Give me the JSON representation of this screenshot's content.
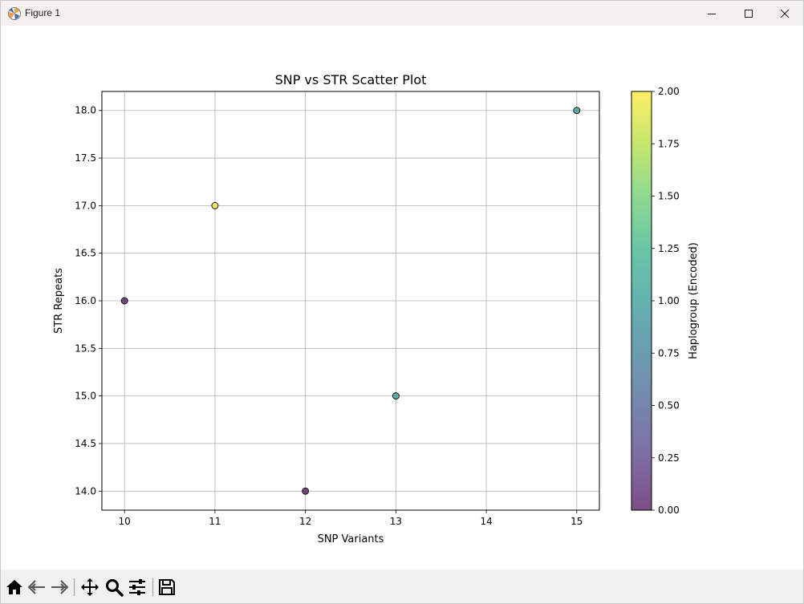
{
  "window": {
    "title": "Figure 1",
    "controls": {
      "minimize_icon": "minimize-icon",
      "maximize_icon": "maximize-icon",
      "close_icon": "close-icon"
    }
  },
  "toolbar": {
    "tools": [
      {
        "name": "home-button",
        "icon": "home-icon"
      },
      {
        "name": "back-button",
        "icon": "back-arrow-icon"
      },
      {
        "name": "forward-button",
        "icon": "forward-arrow-icon"
      },
      {
        "name": "pan-button",
        "icon": "move-icon"
      },
      {
        "name": "zoom-button",
        "icon": "zoom-icon"
      },
      {
        "name": "configure-subplots-button",
        "icon": "sliders-icon"
      },
      {
        "name": "save-button",
        "icon": "save-icon"
      }
    ]
  },
  "chart_data": {
    "type": "scatter",
    "title": "SNP vs STR Scatter Plot",
    "xlabel": "SNP Variants",
    "ylabel": "STR Repeats",
    "xlim": [
      9.75,
      15.25
    ],
    "ylim": [
      13.8,
      18.2
    ],
    "xticks": [
      10,
      11,
      12,
      13,
      14,
      15
    ],
    "xtick_labels": [
      "10",
      "11",
      "12",
      "13",
      "14",
      "15"
    ],
    "yticks": [
      14.0,
      14.5,
      15.0,
      15.5,
      16.0,
      16.5,
      17.0,
      17.5,
      18.0
    ],
    "ytick_labels": [
      "14.0",
      "14.5",
      "15.0",
      "15.5",
      "16.0",
      "16.5",
      "17.0",
      "17.5",
      "18.0"
    ],
    "grid": true,
    "points": [
      {
        "x": 10,
        "y": 16,
        "c": 0
      },
      {
        "x": 11,
        "y": 17,
        "c": 2
      },
      {
        "x": 12,
        "y": 14,
        "c": 0
      },
      {
        "x": 13,
        "y": 15,
        "c": 1
      },
      {
        "x": 15,
        "y": 18,
        "c": 1
      }
    ],
    "colormap": "viridis",
    "alpha": 0.7,
    "colorbar": {
      "label": "Haplogroup (Encoded)",
      "range": [
        0,
        2
      ],
      "ticks": [
        0,
        0.25,
        0.5,
        0.75,
        1.0,
        1.25,
        1.5,
        1.75,
        2.0
      ],
      "tick_labels": [
        "0.00",
        "0.25",
        "0.50",
        "0.75",
        "1.00",
        "1.25",
        "1.50",
        "1.75",
        "2.00"
      ]
    }
  }
}
